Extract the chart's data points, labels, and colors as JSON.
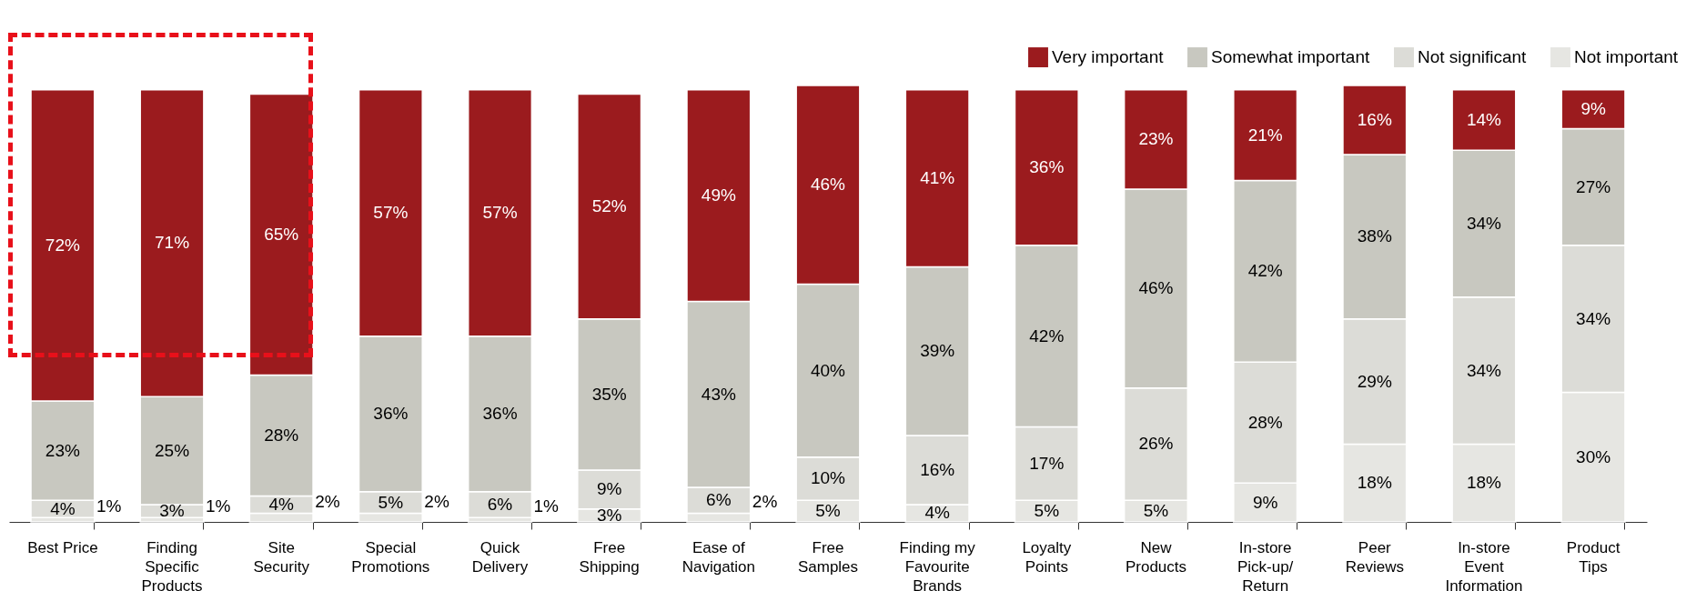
{
  "chart_data": {
    "type": "bar",
    "stacked": true,
    "legend": "top right",
    "categories": [
      "Best Price",
      "Finding Specific Products",
      "Site Security",
      "Special Promotions",
      "Quick Delivery",
      "Free Shipping",
      "Ease of Navigation",
      "Free Samples",
      "Finding my Favourite Brands",
      "Loyalty Points",
      "New Products",
      "In-store Pick-up/Return",
      "Peer Reviews",
      "In-store Event Information",
      "Product Tips"
    ],
    "series": [
      {
        "name": "Not important",
        "color": "#e6e6e2",
        "values": [
          1,
          1,
          2,
          2,
          1,
          3,
          2,
          5,
          4,
          5,
          5,
          9,
          18,
          18,
          30
        ],
        "value_labels": [
          "1%",
          "1%",
          "2%",
          "2%",
          "1%",
          "3%",
          "2%",
          "5%",
          "4%",
          "5%",
          "5%",
          "9%",
          "18%",
          "18%",
          "30%"
        ]
      },
      {
        "name": "Not significant",
        "color": "#dcdcd7",
        "values": [
          4,
          3,
          4,
          5,
          6,
          9,
          6,
          10,
          16,
          17,
          26,
          28,
          29,
          34,
          34
        ],
        "value_labels": [
          "4%",
          "3%",
          "4%",
          "5%",
          "6%",
          "9%",
          "6%",
          "10%",
          "16%",
          "17%",
          "26%",
          "28%",
          "29%",
          "34%",
          "34%"
        ]
      },
      {
        "name": "Somewhat important",
        "color": "#c8c8c0",
        "values": [
          23,
          25,
          28,
          36,
          36,
          35,
          43,
          40,
          39,
          42,
          46,
          42,
          38,
          34,
          27
        ],
        "value_labels": [
          "23%",
          "25%",
          "28%",
          "36%",
          "36%",
          "35%",
          "43%",
          "40%",
          "39%",
          "42%",
          "46%",
          "42%",
          "38%",
          "34%",
          "27%"
        ]
      },
      {
        "name": "Very important",
        "color": "#9b1b1e",
        "values": [
          72,
          71,
          65,
          57,
          57,
          52,
          49,
          46,
          41,
          36,
          23,
          21,
          16,
          14,
          9
        ],
        "value_labels": [
          "72%",
          "71%",
          "65%",
          "57%",
          "57%",
          "52%",
          "49%",
          "46%",
          "41%",
          "36%",
          "23%",
          "21%",
          "16%",
          "14%",
          "9%"
        ]
      }
    ]
  }
}
